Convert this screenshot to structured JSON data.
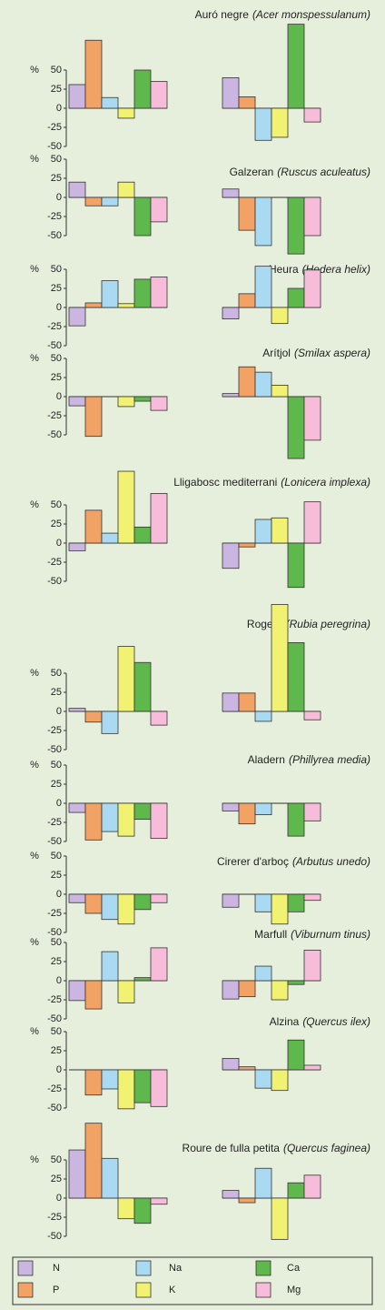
{
  "legend": [
    {
      "name": "N",
      "color": "#cbb6e2"
    },
    {
      "name": "P",
      "color": "#f2a264"
    },
    {
      "name": "Na",
      "color": "#a9daf2"
    },
    {
      "name": "K",
      "color": "#f2f272"
    },
    {
      "name": "Ca",
      "color": "#5fb84c"
    },
    {
      "name": "Mg",
      "color": "#f8bcdb"
    }
  ],
  "chart_data": [
    {
      "type": "bar",
      "title": "Auró negre",
      "species": "(Acer monspessulanum)",
      "ylabel": "%",
      "ylim": [
        -50,
        50
      ],
      "yticks": [
        50,
        25,
        0,
        -25,
        -50
      ],
      "groups": [
        [
          31,
          89,
          14,
          -13,
          50,
          35
        ],
        [
          40,
          15,
          -42,
          -38,
          110,
          -18
        ]
      ]
    },
    {
      "type": "bar",
      "title": "Galzeran",
      "species": "(Ruscus aculeatus)",
      "ylabel": "%",
      "ylim": [
        -50,
        50
      ],
      "yticks": [
        50,
        25,
        0,
        -25,
        -50
      ],
      "groups": [
        [
          20,
          -11,
          -11,
          20,
          -50,
          -32
        ],
        [
          11,
          -43,
          -63,
          0,
          -74,
          -50
        ]
      ]
    },
    {
      "type": "bar",
      "title": "Heura",
      "species": "(Hedera helix)",
      "ylabel": "%",
      "ylim": [
        -50,
        50
      ],
      "yticks": [
        50,
        25,
        0,
        -25,
        -50
      ],
      "groups": [
        [
          -24,
          6,
          35,
          5,
          37,
          40
        ],
        [
          -15,
          18,
          54,
          -21,
          25,
          49
        ]
      ]
    },
    {
      "type": "bar",
      "title": "Arítjol",
      "species": "(Smilax aspera)",
      "ylabel": "%",
      "ylim": [
        -50,
        50
      ],
      "yticks": [
        50,
        25,
        0,
        -25,
        -50
      ],
      "groups": [
        [
          -12,
          -52,
          0,
          -13,
          -6,
          -18
        ],
        [
          4,
          39,
          32,
          15,
          -81,
          -57
        ]
      ]
    },
    {
      "type": "bar",
      "title": "Lligabosc mediterrani",
      "species": "(Lonicera implexa)",
      "ylabel": "%",
      "ylim": [
        -50,
        50
      ],
      "yticks": [
        50,
        25,
        0,
        -25,
        -50
      ],
      "groups": [
        [
          -10,
          43,
          13,
          94,
          21,
          65
        ],
        [
          -33,
          -5,
          31,
          33,
          -58,
          54
        ]
      ]
    },
    {
      "type": "bar",
      "title": "Rogeta",
      "species": "(Rubia peregrina)",
      "ylabel": "%",
      "ylim": [
        -50,
        50
      ],
      "yticks": [
        50,
        25,
        0,
        -25,
        -50
      ],
      "groups": [
        [
          4,
          -14,
          -29,
          85,
          64,
          -18
        ],
        [
          24,
          24,
          -13,
          140,
          90,
          -11
        ]
      ]
    },
    {
      "type": "bar",
      "title": "Aladern",
      "species": "(Phillyrea media)",
      "ylabel": "%",
      "ylim": [
        -50,
        50
      ],
      "yticks": [
        50,
        25,
        0,
        -25,
        -50
      ],
      "groups": [
        [
          -12,
          -48,
          -37,
          -43,
          -21,
          -46
        ],
        [
          -10,
          -27,
          -15,
          0,
          -43,
          -23
        ]
      ]
    },
    {
      "type": "bar",
      "title": "Cirerer d'arboç",
      "species": "(Arbutus unedo)",
      "ylabel": "%",
      "ylim": [
        -50,
        50
      ],
      "yticks": [
        50,
        25,
        0,
        -25,
        -50
      ],
      "groups": [
        [
          -11,
          -25,
          -33,
          -39,
          -20,
          -11
        ],
        [
          -17,
          0,
          -23,
          -39,
          -23,
          -8
        ]
      ]
    },
    {
      "type": "bar",
      "title": "Marfull",
      "species": "(Viburnum tinus)",
      "ylabel": "%",
      "ylim": [
        -50,
        50
      ],
      "yticks": [
        50,
        25,
        0,
        -25,
        -50
      ],
      "groups": [
        [
          -26,
          -37,
          38,
          -29,
          4,
          43
        ],
        [
          -24,
          -21,
          19,
          -25,
          -5,
          40
        ]
      ]
    },
    {
      "type": "bar",
      "title": "Alzina",
      "species": "(Quercus ilex)",
      "ylabel": "%",
      "ylim": [
        -50,
        50
      ],
      "yticks": [
        50,
        25,
        0,
        -25,
        -50
      ],
      "groups": [
        [
          0,
          -33,
          -25,
          -51,
          -43,
          -48
        ],
        [
          15,
          4,
          -24,
          -27,
          39,
          6
        ]
      ]
    },
    {
      "type": "bar",
      "title": "Roure de fulla petita",
      "species": "(Quercus faginea)",
      "ylabel": "%",
      "ylim": [
        -50,
        50
      ],
      "yticks": [
        50,
        25,
        0,
        -25,
        -50
      ],
      "groups": [
        [
          63,
          98,
          52,
          -27,
          -33,
          -8
        ],
        [
          10,
          -6,
          39,
          -54,
          20,
          30
        ]
      ]
    }
  ]
}
